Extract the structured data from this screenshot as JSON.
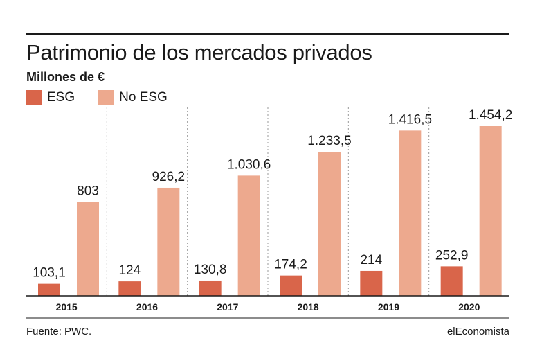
{
  "title": "Patrimonio de los mercados privados",
  "subtitle": "Millones de €",
  "source": "Fuente: PWC.",
  "brand": "elEconomista",
  "colors": {
    "esg": "#d9654a",
    "no_esg": "#eda98e",
    "separator": "#999999",
    "axis": "#1a1a1a"
  },
  "chart_data": {
    "type": "bar",
    "categories": [
      "2015",
      "2016",
      "2017",
      "2018",
      "2019",
      "2020"
    ],
    "series": [
      {
        "name": "ESG",
        "values": [
          103.1,
          124,
          130.8,
          174.2,
          214,
          252.9
        ],
        "labels": [
          "103,1",
          "124",
          "130,8",
          "174,2",
          "214",
          "252,9"
        ]
      },
      {
        "name": "No ESG",
        "values": [
          803,
          926.2,
          1030.6,
          1233.5,
          1416.5,
          1454.2
        ],
        "labels": [
          "803",
          "926,2",
          "1.030,6",
          "1.233,5",
          "1.416,5",
          "1.454,2"
        ]
      }
    ],
    "ylabel": "Millones de €",
    "ylim": [
      0,
      1600
    ],
    "legend": "top-left",
    "grid": false
  }
}
